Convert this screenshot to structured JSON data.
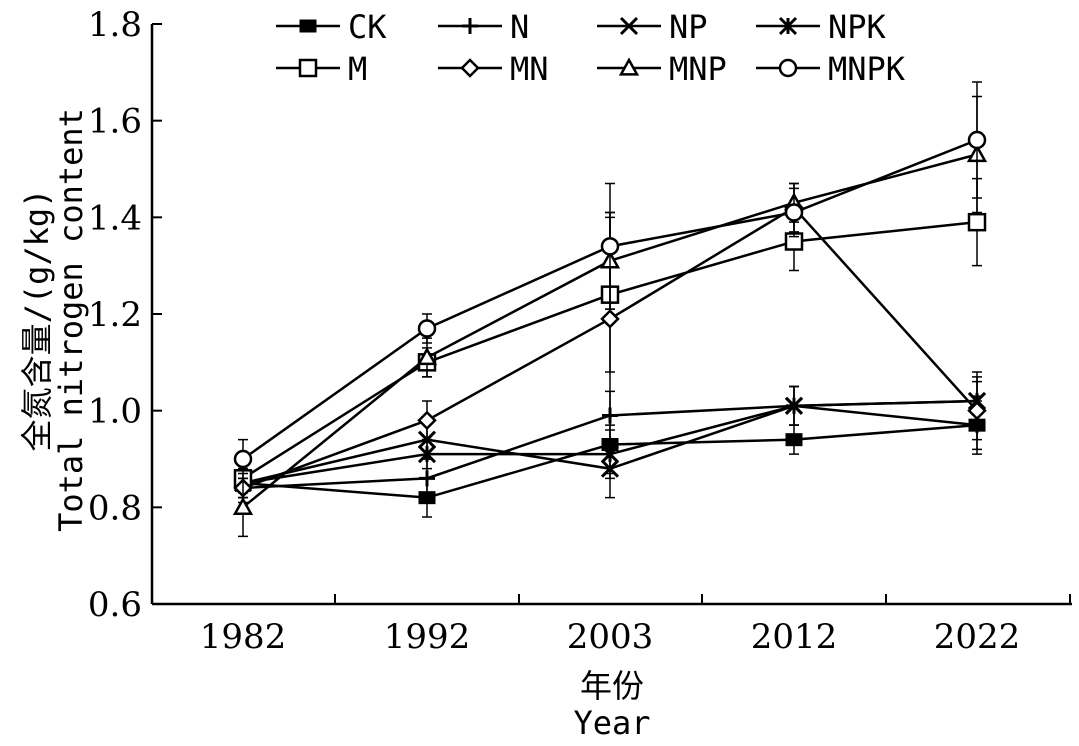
{
  "chart_data": {
    "type": "line",
    "xlabel_zh": "年份",
    "xlabel_en": "Year",
    "ylabel_zh": "全氮含量/(g/kg)",
    "ylabel_en": "Total nitrogen content",
    "categories": [
      "1982",
      "1992",
      "2003",
      "2012",
      "2022"
    ],
    "y_ticks": [
      "0.6",
      "0.8",
      "1.0",
      "1.2",
      "1.4",
      "1.6",
      "1.8"
    ],
    "ylim": [
      0.6,
      1.8
    ],
    "grid": false,
    "legend_position": "top",
    "line_color": "#000000",
    "series": [
      {
        "name": "CK",
        "marker": "filled-square",
        "values": [
          0.85,
          0.82,
          0.93,
          0.94,
          0.97
        ],
        "errors": [
          0.03,
          0.04,
          0.06,
          0.03,
          0.05
        ]
      },
      {
        "name": "N",
        "marker": "plus",
        "values": [
          0.84,
          0.86,
          0.99,
          1.01,
          0.97
        ],
        "errors": [
          0.04,
          0.04,
          0.05,
          0.04,
          0.06
        ]
      },
      {
        "name": "NP",
        "marker": "x",
        "values": [
          0.85,
          0.94,
          0.88,
          1.01,
          1.02
        ],
        "errors": [
          0.03,
          0.04,
          0.06,
          0.04,
          0.06
        ]
      },
      {
        "name": "NPK",
        "marker": "asterisk",
        "values": [
          0.85,
          0.91,
          0.91,
          1.01,
          1.02
        ],
        "errors": [
          0.03,
          0.03,
          0.05,
          0.04,
          0.05
        ]
      },
      {
        "name": "M",
        "marker": "open-square",
        "values": [
          0.86,
          1.1,
          1.24,
          1.35,
          1.39
        ],
        "errors": [
          0.03,
          0.03,
          0.16,
          0.06,
          0.09
        ]
      },
      {
        "name": "MN",
        "marker": "open-diamond",
        "values": [
          0.84,
          0.98,
          1.19,
          1.42,
          1.0
        ],
        "errors": [
          0.03,
          0.04,
          0.22,
          0.05,
          0.06
        ]
      },
      {
        "name": "MNP",
        "marker": "open-triangle",
        "values": [
          0.8,
          1.11,
          1.31,
          1.43,
          1.53
        ],
        "errors": [
          0.06,
          0.04,
          0.1,
          0.04,
          0.12
        ]
      },
      {
        "name": "MNPK",
        "marker": "open-circle",
        "values": [
          0.9,
          1.17,
          1.34,
          1.41,
          1.56
        ],
        "errors": [
          0.04,
          0.03,
          0.13,
          0.05,
          0.12
        ]
      }
    ]
  }
}
